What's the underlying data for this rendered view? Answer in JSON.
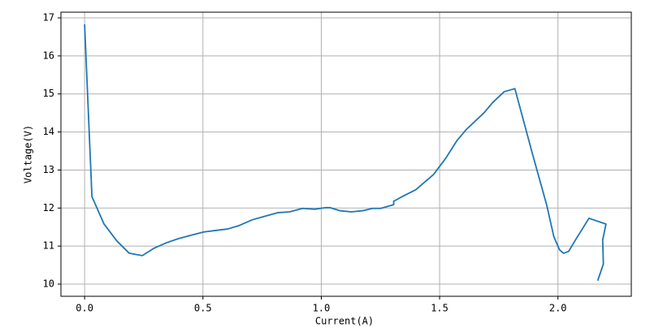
{
  "chart_data": {
    "type": "line",
    "x_label": "Current(A)",
    "y_label": "Voltage(V)",
    "xlim": [
      -0.1,
      2.31
    ],
    "ylim": [
      9.68,
      17.15
    ],
    "xticks": [
      {
        "value": 0,
        "label": "0.0"
      },
      0.5,
      {
        "value": 1,
        "label": "1.0"
      },
      1.5,
      {
        "value": 2,
        "label": "2.0"
      }
    ],
    "yticks": [
      10,
      11,
      12,
      13,
      14,
      15,
      16,
      17
    ],
    "grid": true,
    "series": [
      {
        "color": "#1f77b4",
        "x": [
          0,
          0.031,
          0.082,
          0.137,
          0.189,
          0.244,
          0.292,
          0.347,
          0.399,
          0.447,
          0.502,
          0.553,
          0.605,
          0.653,
          0.708,
          0.759,
          0.818,
          0.866,
          0.921,
          0.973,
          1.017,
          1.038,
          1.079,
          1.127,
          1.175,
          1.216,
          1.251,
          1.306,
          1.306,
          1.351,
          1.399,
          1.474,
          1.526,
          1.574,
          1.612,
          1.687,
          1.725,
          1.773,
          1.818,
          1.893,
          1.952,
          1.983,
          2.007,
          2.024,
          2.045,
          2.076,
          2.131,
          2.203,
          2.189,
          2.192,
          2.168
        ],
        "values": [
          16.83,
          12.3,
          11.58,
          11.13,
          10.81,
          10.75,
          10.94,
          11.09,
          11.2,
          11.28,
          11.37,
          11.41,
          11.45,
          11.54,
          11.69,
          11.78,
          11.88,
          11.9,
          11.99,
          11.97,
          12.01,
          12.01,
          11.93,
          11.9,
          11.93,
          11.99,
          11.99,
          12.09,
          12.18,
          12.33,
          12.48,
          12.88,
          13.31,
          13.78,
          14.06,
          14.5,
          14.78,
          15.06,
          15.14,
          13.41,
          12.09,
          11.24,
          10.9,
          10.81,
          10.86,
          11.18,
          11.73,
          11.58,
          11.16,
          10.53,
          10.09
        ]
      }
    ]
  }
}
